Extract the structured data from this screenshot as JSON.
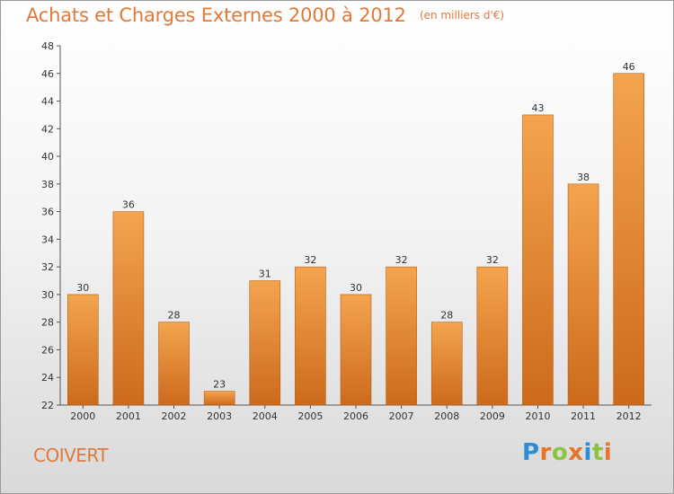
{
  "title": {
    "main": "Achats et Charges Externes 2000 à 2012",
    "unit": "(en milliers d'€)"
  },
  "commune": "COIVERT",
  "logo": {
    "letters": [
      "P",
      "r",
      "o",
      "x",
      "i",
      "t",
      "i"
    ],
    "colors": [
      "#2a8fd6",
      "#e8742a",
      "#8cc43f",
      "#e8742a",
      "#2a8fd6",
      "#8cc43f",
      "#e8742a"
    ]
  },
  "colors": {
    "title": "#e0793a",
    "bar_top": "#f4a44f",
    "bar_bottom": "#cc6a1c",
    "bar_edge": "#b85d14"
  },
  "chart_data": {
    "type": "bar",
    "title": "Achats et Charges Externes 2000 à 2012",
    "subtitle": "(en milliers d'€)",
    "xlabel": "",
    "ylabel": "",
    "categories": [
      "2000",
      "2001",
      "2002",
      "2003",
      "2004",
      "2005",
      "2006",
      "2007",
      "2008",
      "2009",
      "2010",
      "2011",
      "2012"
    ],
    "values": [
      30,
      36,
      28,
      23,
      31,
      32,
      30,
      32,
      28,
      32,
      43,
      38,
      46
    ],
    "ylim": [
      22,
      48
    ],
    "yticks": [
      22,
      24,
      26,
      28,
      30,
      32,
      34,
      36,
      38,
      40,
      42,
      44,
      46,
      48
    ],
    "grid": false,
    "legend": "none",
    "data_labels": true
  }
}
